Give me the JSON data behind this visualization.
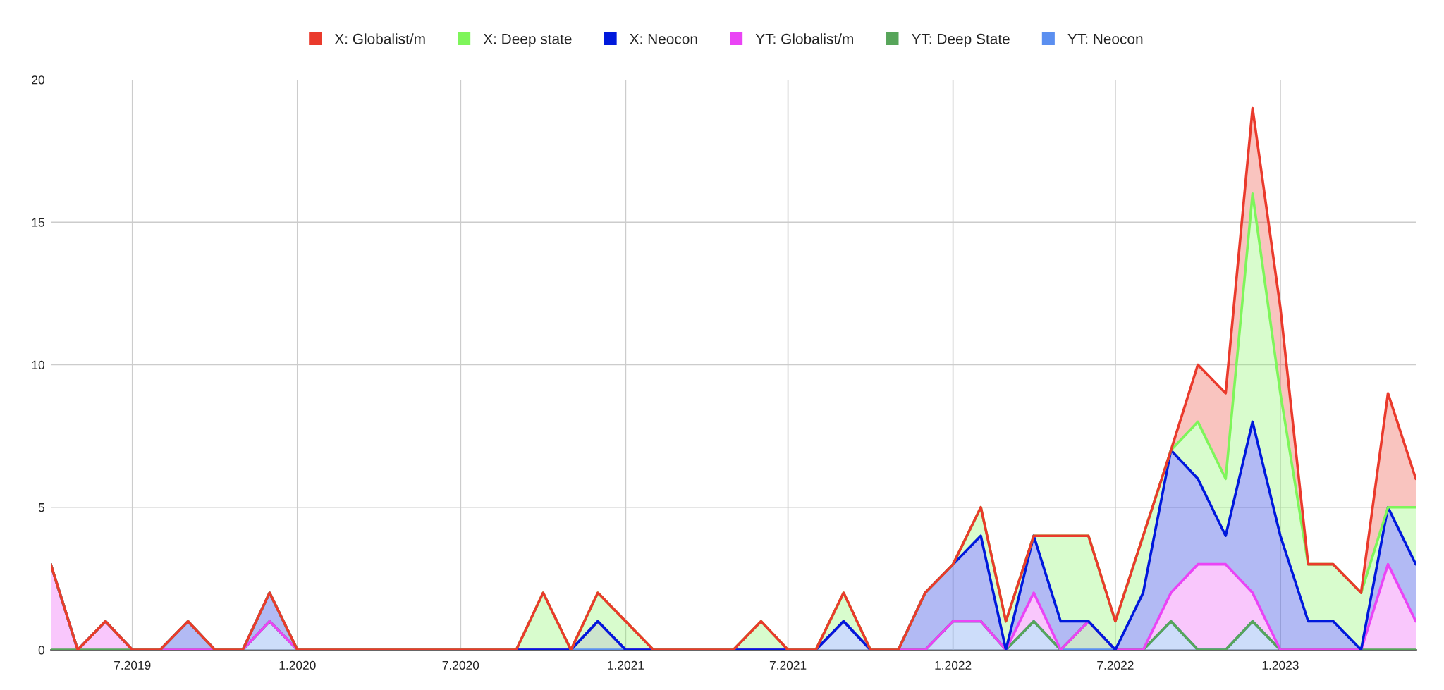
{
  "chart_data": {
    "type": "area",
    "stacked": true,
    "x": [
      "2019-04",
      "2019-05",
      "2019-06",
      "2019-07",
      "2019-08",
      "2019-09",
      "2019-10",
      "2019-11",
      "2019-12",
      "2020-01",
      "2020-02",
      "2020-03",
      "2020-04",
      "2020-05",
      "2020-06",
      "2020-07",
      "2020-08",
      "2020-09",
      "2020-10",
      "2020-11",
      "2020-12",
      "2021-01",
      "2021-02",
      "2021-03",
      "2021-04",
      "2021-05",
      "2021-06",
      "2021-07",
      "2021-08",
      "2021-09",
      "2021-10",
      "2021-11",
      "2021-12",
      "2022-01",
      "2022-02",
      "2022-03",
      "2022-04",
      "2022-05",
      "2022-06",
      "2022-07",
      "2022-08",
      "2022-09",
      "2022-10",
      "2022-11",
      "2022-12",
      "2023-01",
      "2023-02",
      "2023-03",
      "2023-04",
      "2023-05",
      "2023-06"
    ],
    "series": [
      {
        "name": "YT: Neocon",
        "color": "#5b8ff0",
        "values": [
          null,
          null,
          null,
          null,
          null,
          null,
          null,
          0,
          1,
          0,
          0,
          0,
          0,
          0,
          0,
          0,
          0,
          0,
          0,
          0,
          0,
          0,
          0,
          0,
          0,
          0,
          0,
          0,
          0,
          1,
          0,
          0,
          0,
          1,
          1,
          0,
          1,
          0,
          0,
          0,
          0,
          1,
          0,
          0,
          1,
          0,
          null,
          null,
          null,
          null,
          null
        ]
      },
      {
        "name": "YT: Deep State",
        "color": "#57a55a",
        "values": [
          0,
          0,
          0,
          0,
          0,
          0,
          0,
          0,
          0,
          0,
          0,
          0,
          0,
          0,
          0,
          0,
          0,
          0,
          0,
          0,
          1,
          0,
          0,
          0,
          0,
          0,
          0,
          0,
          0,
          0,
          0,
          0,
          0,
          0,
          0,
          0,
          0,
          0,
          1,
          0,
          0,
          0,
          0,
          0,
          0,
          0,
          0,
          0,
          0,
          0,
          0
        ]
      },
      {
        "name": "YT: Globalist/m",
        "color": "#ea44f5",
        "values": [
          3,
          0,
          1,
          0,
          0,
          0,
          0,
          0,
          0,
          0,
          0,
          0,
          0,
          0,
          0,
          0,
          0,
          0,
          0,
          0,
          0,
          0,
          0,
          0,
          0,
          0,
          0,
          0,
          0,
          0,
          0,
          0,
          0,
          0,
          0,
          0,
          1,
          0,
          0,
          0,
          0,
          1,
          3,
          3,
          1,
          0,
          0,
          0,
          0,
          3,
          1
        ]
      },
      {
        "name": "X: Neocon",
        "color": "#0019dc",
        "values": [
          0,
          0,
          0,
          0,
          0,
          1,
          0,
          0,
          1,
          0,
          0,
          0,
          0,
          0,
          0,
          0,
          0,
          0,
          0,
          0,
          0,
          0,
          0,
          0,
          0,
          0,
          0,
          0,
          0,
          0,
          0,
          0,
          2,
          2,
          3,
          0,
          2,
          1,
          0,
          0,
          2,
          5,
          3,
          1,
          6,
          4,
          1,
          1,
          0,
          2,
          2
        ]
      },
      {
        "name": "X: Deep state",
        "color": "#7ef55a",
        "values": [
          0,
          0,
          0,
          0,
          0,
          0,
          0,
          0,
          0,
          0,
          0,
          0,
          0,
          0,
          0,
          0,
          0,
          0,
          2,
          0,
          1,
          1,
          0,
          0,
          0,
          0,
          1,
          0,
          0,
          1,
          0,
          0,
          0,
          0,
          1,
          1,
          0,
          3,
          3,
          1,
          2,
          0,
          2,
          2,
          8,
          5,
          2,
          2,
          2,
          0,
          2
        ]
      },
      {
        "name": "X: Globalist/m",
        "color": "#ea3a2c",
        "values": [
          0,
          0,
          0,
          0,
          0,
          0,
          0,
          0,
          0,
          0,
          0,
          0,
          0,
          0,
          0,
          0,
          0,
          0,
          0,
          0,
          0,
          0,
          0,
          0,
          0,
          0,
          0,
          0,
          0,
          0,
          0,
          0,
          0,
          0,
          0,
          0,
          0,
          0,
          0,
          0,
          0,
          0,
          2,
          3,
          3,
          3,
          0,
          0,
          0,
          4,
          1
        ]
      }
    ],
    "xlim": [
      "2019-04",
      "2023-06"
    ],
    "xticks": [
      {
        "value": "2019-07",
        "label": "7.2019"
      },
      {
        "value": "2020-01",
        "label": "1.2020"
      },
      {
        "value": "2020-07",
        "label": "7.2020"
      },
      {
        "value": "2021-01",
        "label": "1.2021"
      },
      {
        "value": "2021-07",
        "label": "7.2021"
      },
      {
        "value": "2022-01",
        "label": "1.2022"
      },
      {
        "value": "2022-07",
        "label": "7.2022"
      },
      {
        "value": "2023-01",
        "label": "1.2023"
      }
    ],
    "ylim": [
      0,
      20
    ],
    "yticks": [
      0,
      5,
      10,
      15,
      20
    ],
    "grid": true,
    "legend": "top"
  }
}
